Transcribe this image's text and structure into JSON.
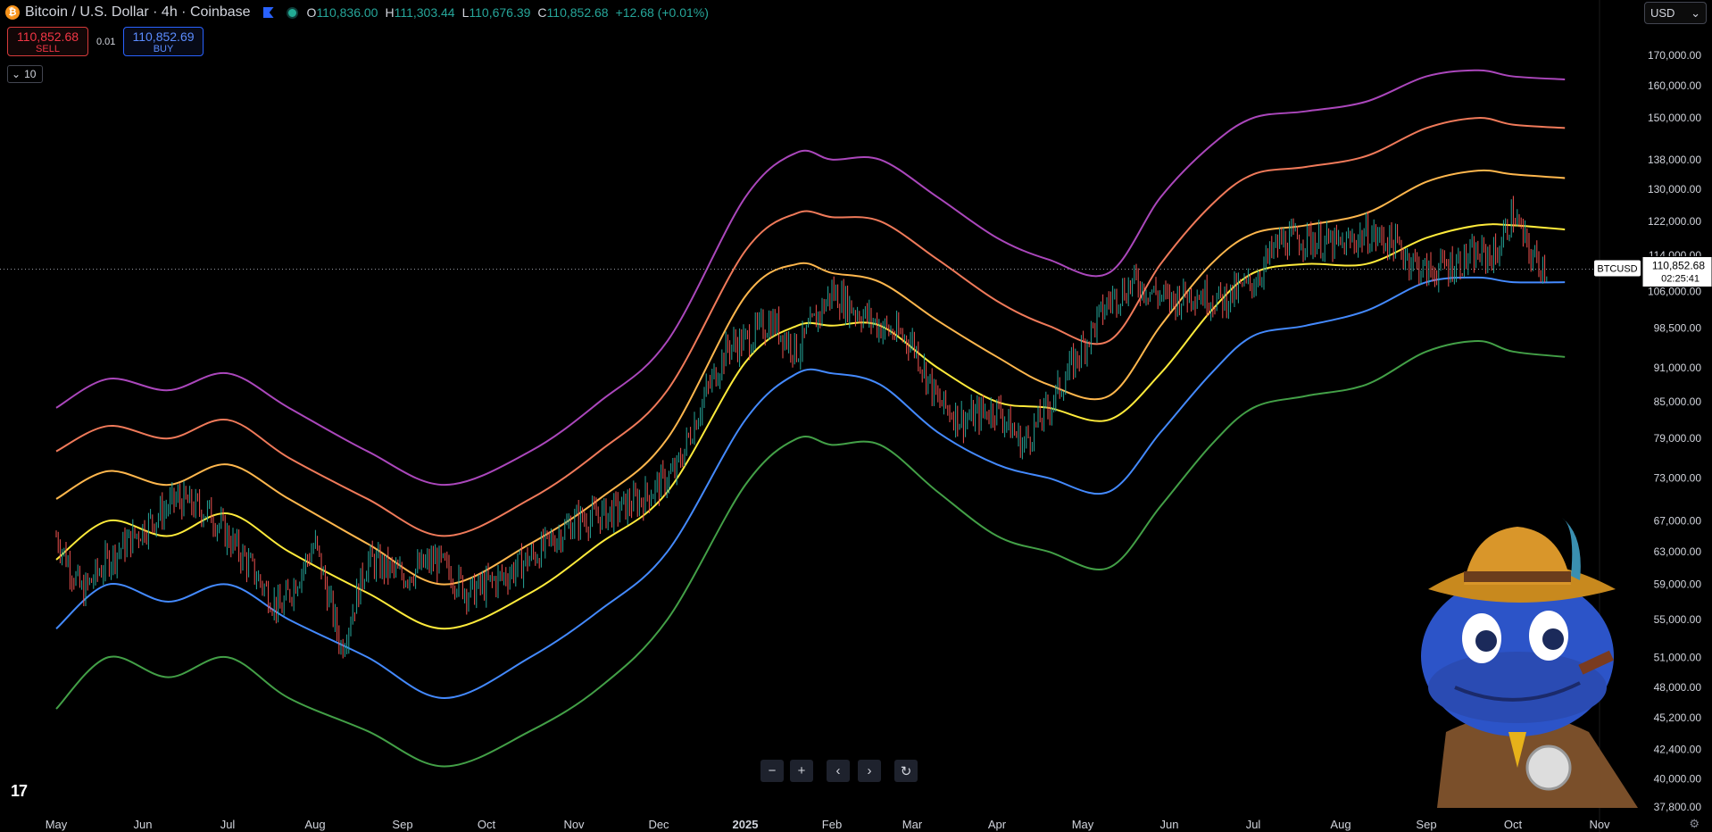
{
  "header": {
    "coin_icon": "bitcoin-icon",
    "symbol": "Bitcoin / U.S. Dollar · 4h · Coinbase",
    "ohlc": [
      {
        "k": "O",
        "v": "110,836.00"
      },
      {
        "k": "H",
        "v": "111,303.44"
      },
      {
        "k": "L",
        "v": "110,676.39"
      },
      {
        "k": "C",
        "v": "110,852.68"
      }
    ],
    "change": "+12.68 (+0.01%)"
  },
  "trade": {
    "sell_price": "110,852.68",
    "sell_label": "SELL",
    "buy_price": "110,852.69",
    "buy_label": "BUY",
    "spread": "0.01",
    "quantity": "10"
  },
  "currency": "USD",
  "price_label": {
    "symbol": "BTCUSD",
    "price": "110,852.68",
    "countdown": "02:25:41"
  },
  "colors": {
    "up": "#26a69a",
    "down": "#ef5350",
    "purple": "#ab47bc",
    "salmon": "#f07a5a",
    "orange": "#ffb74d",
    "yellow": "#ffeb3b",
    "blue": "#448aff",
    "green": "#43a047"
  },
  "chart_data": {
    "type": "line",
    "title": "",
    "y_scale": "log",
    "ylim": [
      37800,
      180000
    ],
    "x": [
      "May",
      "Jun",
      "Jul",
      "Aug",
      "Sep",
      "Oct",
      "Nov",
      "Dec",
      "2025",
      "Feb",
      "Mar",
      "Apr",
      "May",
      "Jun",
      "Jul",
      "Aug",
      "Sep",
      "Oct",
      "Nov"
    ],
    "y_ticks": [
      "170,000.00",
      "160,000.00",
      "150,000.00",
      "138,000.00",
      "130,000.00",
      "122,000.00",
      "114,000.00",
      "106,000.00",
      "98,500.00",
      "91,000.00",
      "85,000.00",
      "79,000.00",
      "73,000.00",
      "67,000.00",
      "63,000.00",
      "59,000.00",
      "55,000.00",
      "51,000.00",
      "48,000.00",
      "45,200.00",
      "42,400.00",
      "40,000.00",
      "37,800.00"
    ],
    "price": {
      "name": "BTCUSD",
      "x": [
        0,
        0.3,
        0.6,
        1,
        1.4,
        1.8,
        2.2,
        2.6,
        3,
        3.3,
        3.6,
        4,
        4.4,
        4.8,
        5.2,
        5.6,
        6,
        6.4,
        6.8,
        7.2,
        7.5,
        7.8,
        8,
        8.3,
        8.6,
        9,
        9.3,
        9.7,
        10,
        10.3,
        10.6,
        11,
        11.3,
        11.6,
        12,
        12.3,
        12.6,
        13,
        13.3,
        13.6,
        14,
        14.3,
        14.6,
        15,
        15.3,
        15.6,
        16,
        16.3,
        16.6,
        16.8,
        17,
        17.2,
        17.4
      ],
      "y": [
        65000,
        58000,
        62000,
        66000,
        70000,
        68000,
        62000,
        56000,
        64000,
        52000,
        62000,
        60000,
        62000,
        58000,
        60000,
        63000,
        67000,
        68000,
        70000,
        74000,
        85000,
        95000,
        96000,
        100000,
        94000,
        106000,
        102000,
        98000,
        96000,
        85000,
        82000,
        84000,
        78000,
        84000,
        95000,
        104000,
        108000,
        104000,
        106000,
        104000,
        108000,
        117000,
        118000,
        116000,
        119000,
        117000,
        110000,
        112000,
        114000,
        114000,
        124000,
        114000,
        110852
      ]
    },
    "series": [
      {
        "name": "",
        "color": "purple",
        "x": [
          0,
          0.6,
          1.3,
          2,
          2.7,
          3.6,
          4.5,
          5.5,
          6.3,
          7.1,
          8,
          8.6,
          9,
          9.6,
          10.3,
          11,
          11.6,
          12.3,
          12.9,
          13.5,
          14,
          14.6,
          15.3,
          16,
          16.6,
          17,
          17.6
        ],
        "y": [
          84000,
          89000,
          87000,
          90000,
          84000,
          77000,
          72000,
          77000,
          85000,
          96000,
          128000,
          140000,
          138000,
          138000,
          128000,
          118000,
          113000,
          110000,
          128000,
          142000,
          150000,
          152000,
          155000,
          163000,
          165000,
          163000,
          162000
        ]
      },
      {
        "name": "",
        "color": "salmon",
        "x": [
          0,
          0.6,
          1.3,
          2,
          2.7,
          3.6,
          4.5,
          5.5,
          6.3,
          7.1,
          8,
          8.6,
          9,
          9.6,
          10.3,
          11,
          11.6,
          12.3,
          12.9,
          13.5,
          14,
          14.6,
          15.3,
          16,
          16.6,
          17,
          17.6
        ],
        "y": [
          77000,
          81000,
          79000,
          82000,
          76000,
          70000,
          65000,
          70000,
          77000,
          87000,
          115000,
          124000,
          123000,
          122000,
          113000,
          104000,
          99000,
          96000,
          112000,
          126000,
          134000,
          136000,
          139000,
          147000,
          150000,
          148000,
          147000
        ]
      },
      {
        "name": "",
        "color": "orange",
        "x": [
          0,
          0.6,
          1.3,
          2,
          2.7,
          3.6,
          4.5,
          5.5,
          6.3,
          7.1,
          8,
          8.6,
          9,
          9.6,
          10.3,
          11,
          11.6,
          12.3,
          12.9,
          13.5,
          14,
          14.6,
          15.3,
          16,
          16.6,
          17,
          17.6
        ],
        "y": [
          70000,
          74000,
          72000,
          75000,
          70000,
          64000,
          59000,
          64000,
          70000,
          79000,
          105000,
          112000,
          110000,
          108000,
          100000,
          93000,
          88000,
          86000,
          99000,
          112000,
          119000,
          121000,
          124000,
          132000,
          135000,
          134000,
          133000
        ]
      },
      {
        "name": "",
        "color": "yellow",
        "x": [
          0,
          0.6,
          1.3,
          2,
          2.7,
          3.6,
          4.5,
          5.5,
          6.3,
          7.1,
          8,
          8.6,
          9,
          9.6,
          10.3,
          11,
          11.6,
          12.3,
          12.9,
          13.5,
          14,
          14.6,
          15.3,
          16,
          16.6,
          17,
          17.6
        ],
        "y": [
          62000,
          67000,
          65000,
          68000,
          63000,
          58000,
          54000,
          58000,
          64000,
          71000,
          92000,
          99000,
          99000,
          99000,
          91000,
          85000,
          84000,
          82000,
          90000,
          102000,
          110000,
          112000,
          112000,
          118000,
          121000,
          121000,
          120000
        ]
      },
      {
        "name": "",
        "color": "blue",
        "x": [
          0,
          0.6,
          1.3,
          2,
          2.7,
          3.6,
          4.5,
          5.5,
          6.3,
          7.1,
          8,
          8.6,
          9,
          9.6,
          10.3,
          11,
          11.6,
          12.3,
          12.9,
          13.5,
          14,
          14.6,
          15.3,
          16,
          16.6,
          17,
          17.6
        ],
        "y": [
          54000,
          59000,
          57000,
          59000,
          55000,
          51000,
          47000,
          51000,
          56000,
          63000,
          82000,
          90000,
          90000,
          88000,
          80000,
          75000,
          73000,
          71000,
          80000,
          90000,
          97000,
          99000,
          102000,
          108000,
          109000,
          108000,
          108000
        ]
      },
      {
        "name": "",
        "color": "green",
        "x": [
          0,
          0.6,
          1.3,
          2,
          2.7,
          3.6,
          4.5,
          5.5,
          6.3,
          7.1,
          8,
          8.6,
          9,
          9.6,
          10.3,
          11,
          11.6,
          12.3,
          12.9,
          13.5,
          14,
          14.6,
          15.3,
          16,
          16.6,
          17,
          17.6
        ],
        "y": [
          46000,
          51000,
          49000,
          51000,
          47000,
          44000,
          41000,
          44000,
          48000,
          55000,
          72000,
          79000,
          78000,
          78000,
          71000,
          65000,
          63000,
          61000,
          69000,
          78000,
          84000,
          86000,
          88000,
          94000,
          96000,
          94000,
          93000
        ]
      }
    ]
  }
}
